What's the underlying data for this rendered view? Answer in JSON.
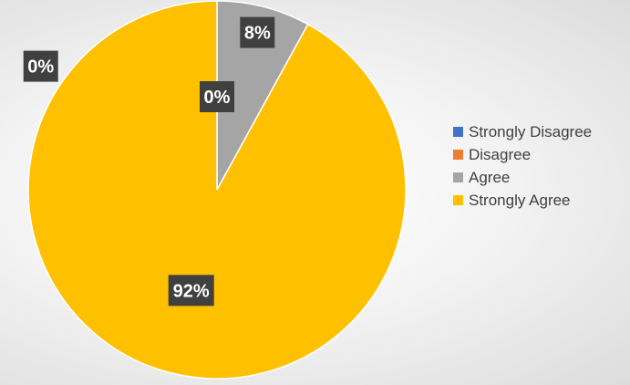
{
  "chart_data": {
    "type": "pie",
    "categories": [
      "Strongly Disagree",
      "Disagree",
      "Agree",
      "Strongly Agree"
    ],
    "values": [
      0,
      0,
      8,
      92
    ],
    "data_labels": [
      "0%",
      "0%",
      "8%",
      "92%"
    ],
    "colors": [
      "#4472C4",
      "#ED7D31",
      "#A5A5A5",
      "#FFC000"
    ],
    "legend_position": "right"
  }
}
